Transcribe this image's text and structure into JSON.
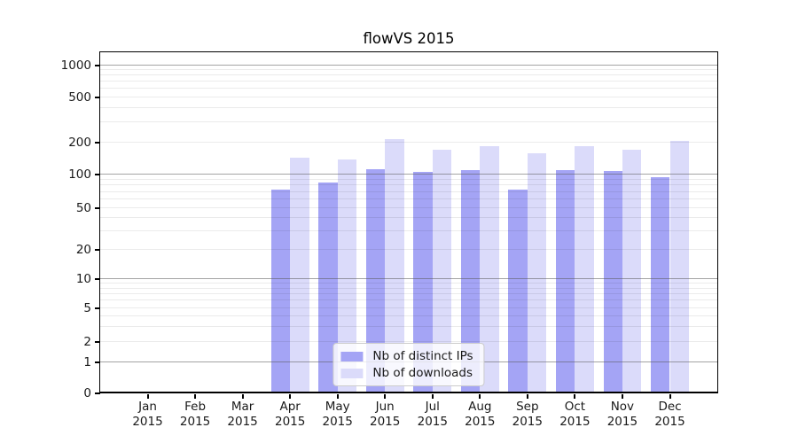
{
  "chart_data": {
    "type": "bar",
    "title": "flowVS 2015",
    "categories": [
      "Jan 2015",
      "Feb 2015",
      "Mar 2015",
      "Apr 2015",
      "May 2015",
      "Jun 2015",
      "Jul 2015",
      "Aug 2015",
      "Sep 2015",
      "Oct 2015",
      "Nov 2015",
      "Dec 2015"
    ],
    "series": [
      {
        "name": "Nb of distinct IPs",
        "color": "#a4a4f5",
        "values": [
          0,
          0,
          0,
          73,
          85,
          112,
          106,
          110,
          74,
          110,
          108,
          95
        ]
      },
      {
        "name": "Nb of downloads",
        "color": "#dbdbfa",
        "values": [
          0,
          0,
          0,
          143,
          138,
          212,
          170,
          183,
          158,
          184,
          170,
          205
        ]
      }
    ],
    "xlabel": "",
    "ylabel": "",
    "yscale": "symlog",
    "yticks": [
      0,
      1,
      2,
      5,
      10,
      20,
      50,
      100,
      200,
      500,
      1000
    ],
    "ylim": [
      0,
      1300
    ],
    "grid": "horizontal major + minor log lines, drawn over bars",
    "legend_position": "lower center",
    "bar_width": 0.4
  },
  "colors": {
    "background": "#ffffff",
    "spine": "#000000",
    "grid_major": "rgba(90,90,90,0.55)",
    "grid_minor": "rgba(0,0,0,0.08)",
    "text": "#1a1a1a",
    "legend_border": "#cccccc",
    "legend_bg": "rgba(255,255,255,0.8)"
  }
}
